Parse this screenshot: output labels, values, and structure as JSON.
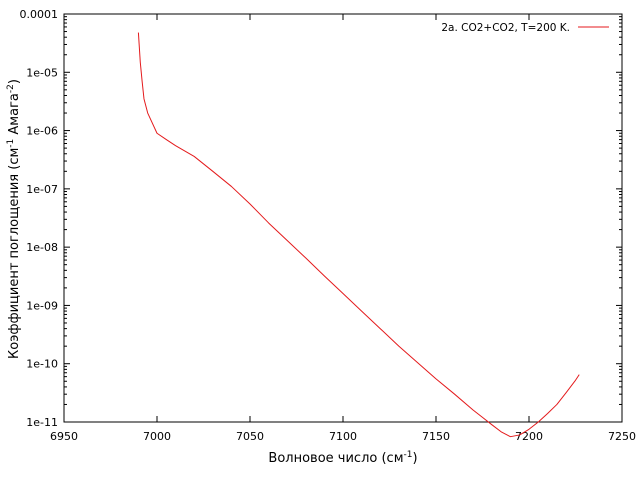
{
  "chart_data": {
    "type": "line",
    "title": "",
    "xlabel": "Волновое число (см",
    "xlabel_sup": "-1",
    "xlabel_end": ")",
    "ylabel": "Коэффициент поглощения (см",
    "ylabel_sup1": "-1",
    "ylabel_mid": " Амага",
    "ylabel_sup2": "-2",
    "ylabel_end": ")",
    "xlim": [
      6950,
      7250
    ],
    "ylim": [
      1e-11,
      0.0001
    ],
    "yscale": "log",
    "grid": false,
    "legend_position": "top-right",
    "x_ticks": [
      6950,
      7000,
      7050,
      7100,
      7150,
      7200,
      7250
    ],
    "x_tick_labels": [
      "6950",
      "7000",
      "7050",
      "7100",
      "7150",
      "7200",
      "7250"
    ],
    "y_ticks": [
      1e-11,
      1e-10,
      1e-09,
      1e-08,
      1e-07,
      1e-06,
      1e-05,
      0.0001
    ],
    "y_tick_labels": [
      "1e-11",
      "1e-10",
      "1e-09",
      "1e-08",
      "1e-07",
      "1e-06",
      "1e-05",
      "0.0001"
    ],
    "series": [
      {
        "name": "2a.  CO2+CO2, T=200 K.",
        "color": "#e41a1c",
        "x": [
          6990,
          6991,
          6992,
          6993,
          6995,
          7000,
          7005,
          7010,
          7020,
          7030,
          7040,
          7050,
          7060,
          7070,
          7080,
          7090,
          7100,
          7110,
          7120,
          7130,
          7140,
          7150,
          7160,
          7170,
          7175,
          7180,
          7185,
          7190,
          7195,
          7200,
          7205,
          7210,
          7215,
          7220,
          7225,
          7227
        ],
        "y": [
          4.8e-05,
          1.5e-05,
          7e-06,
          3.5e-06,
          2e-06,
          9e-07,
          7e-07,
          5.5e-07,
          3.6e-07,
          2e-07,
          1.1e-07,
          5.5e-08,
          2.6e-08,
          1.3e-08,
          6.5e-09,
          3.2e-09,
          1.6e-09,
          8e-10,
          4e-10,
          2e-10,
          1.05e-10,
          5.5e-11,
          3e-11,
          1.6e-11,
          1.2e-11,
          9e-12,
          6.8e-12,
          5.6e-12,
          6e-12,
          7.5e-12,
          1e-11,
          1.4e-11,
          2e-11,
          3.2e-11,
          5.2e-11,
          6.5e-11
        ]
      }
    ]
  }
}
